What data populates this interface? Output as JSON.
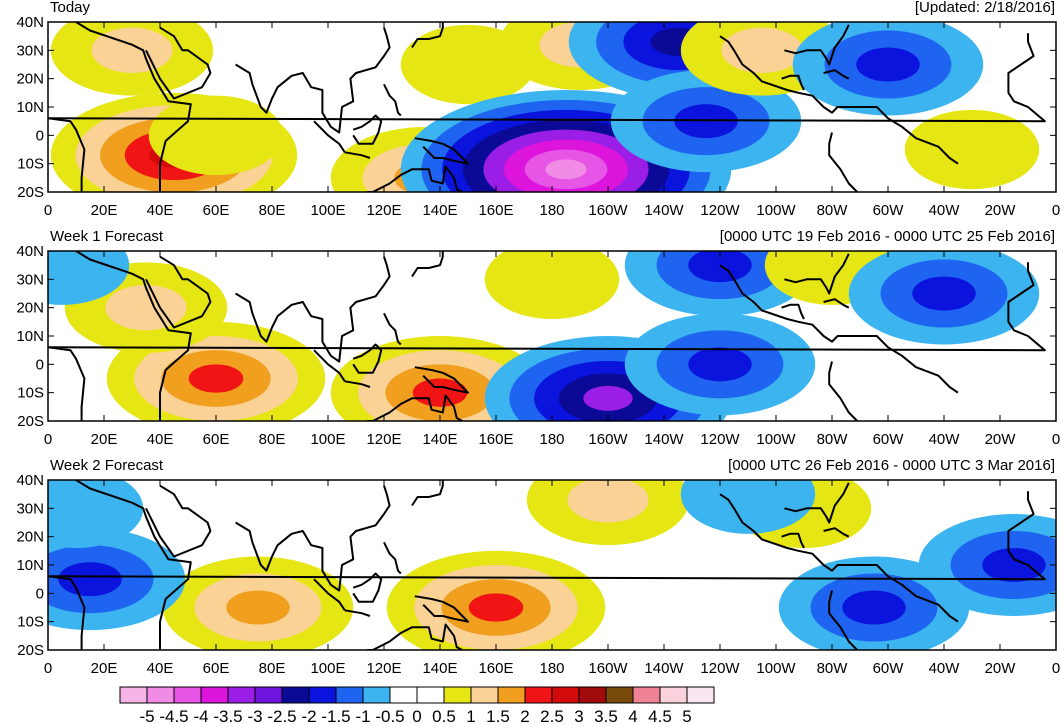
{
  "panels": [
    {
      "title": "Today",
      "subtitle": "[Updated: 2/18/2016]",
      "anomalies": [
        {
          "lon": 45,
          "lat": -7,
          "value": 3
        },
        {
          "lon": 30,
          "lat": 30,
          "value": 1.5
        },
        {
          "lon": 60,
          "lat": 0,
          "value": 1
        },
        {
          "lon": 135,
          "lat": -15,
          "value": 2
        },
        {
          "lon": 150,
          "lat": 25,
          "value": 1
        },
        {
          "lon": 190,
          "lat": 32,
          "value": 1.5
        },
        {
          "lon": 185,
          "lat": -12,
          "value": -4.5
        },
        {
          "lon": 225,
          "lat": 33,
          "value": -2.5
        },
        {
          "lon": 235,
          "lat": 5,
          "value": -2
        },
        {
          "lon": 255,
          "lat": 30,
          "value": 1.5
        },
        {
          "lon": 300,
          "lat": 25,
          "value": -2
        },
        {
          "lon": 330,
          "lat": -5,
          "value": 1
        }
      ]
    },
    {
      "title": "Week 1 Forecast",
      "subtitle": "[0000 UTC 19 Feb 2016 - 0000 UTC 25 Feb 2016]",
      "anomalies": [
        {
          "lon": 60,
          "lat": -5,
          "value": 2.5
        },
        {
          "lon": 35,
          "lat": 20,
          "value": 1.5
        },
        {
          "lon": 140,
          "lat": -10,
          "value": 2.5
        },
        {
          "lon": 180,
          "lat": 30,
          "value": 1
        },
        {
          "lon": 200,
          "lat": -12,
          "value": -3
        },
        {
          "lon": 240,
          "lat": 0,
          "value": -2
        },
        {
          "lon": 240,
          "lat": 35,
          "value": -2
        },
        {
          "lon": 280,
          "lat": 35,
          "value": 1
        },
        {
          "lon": 320,
          "lat": 25,
          "value": -2
        },
        {
          "lon": 5,
          "lat": 35,
          "value": -1
        }
      ]
    },
    {
      "title": "Week 2 Forecast",
      "subtitle": "[0000 UTC 26 Feb 2016 - 0000 UTC 3 Mar 2016]",
      "anomalies": [
        {
          "lon": 75,
          "lat": -5,
          "value": 2
        },
        {
          "lon": 160,
          "lat": -5,
          "value": 2.5
        },
        {
          "lon": 200,
          "lat": 33,
          "value": 1.5
        },
        {
          "lon": 270,
          "lat": 30,
          "value": 1
        },
        {
          "lon": 295,
          "lat": -5,
          "value": -2
        },
        {
          "lon": 345,
          "lat": 10,
          "value": -2
        },
        {
          "lon": 15,
          "lat": 5,
          "value": -2
        },
        {
          "lon": 10,
          "lat": 30,
          "value": -1
        },
        {
          "lon": 250,
          "lat": 35,
          "value": -1
        }
      ]
    }
  ],
  "lon_ticks": [
    "0",
    "20E",
    "40E",
    "60E",
    "80E",
    "100E",
    "120E",
    "140E",
    "160E",
    "180",
    "160W",
    "140W",
    "120W",
    "100W",
    "80W",
    "60W",
    "40W",
    "20W",
    "0"
  ],
  "lat_ticks": [
    "40N",
    "30N",
    "20N",
    "10N",
    "0",
    "10S",
    "20S"
  ],
  "legend": {
    "labels": [
      "-5",
      "-4.5",
      "-4",
      "-3.5",
      "-3",
      "-2.5",
      "-2",
      "-1.5",
      "-1",
      "-0.5",
      "0",
      "0.5",
      "1",
      "1.5",
      "2",
      "2.5",
      "3",
      "3.5",
      "4",
      "4.5",
      "5"
    ],
    "colors": [
      "#f5b3e6",
      "#f08ce6",
      "#e655e6",
      "#dc14dc",
      "#9b1ee6",
      "#6e14dc",
      "#0a0a96",
      "#0a14dc",
      "#1e64f0",
      "#3cb4f0",
      "#ffffff",
      "#ffffff",
      "#e6e614",
      "#fad296",
      "#f0a01e",
      "#f01414",
      "#d20a0a",
      "#a00a0a",
      "#784b0a",
      "#f08296",
      "#fad2dc",
      "#fae6f0"
    ]
  }
}
